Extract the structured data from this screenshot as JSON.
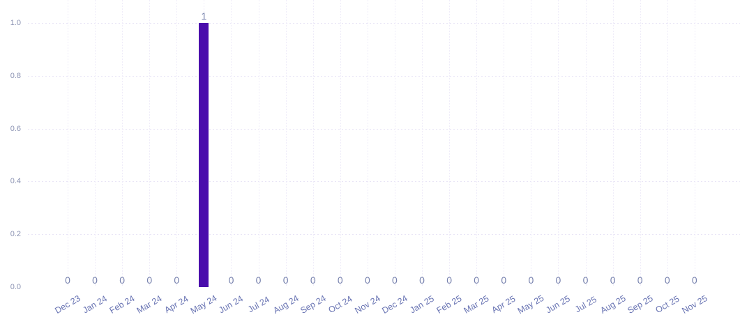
{
  "chart_data": {
    "type": "bar",
    "title": "",
    "xlabel": "",
    "ylabel": "",
    "categories": [
      "Dec 23",
      "Jan 24",
      "Feb 24",
      "Mar 24",
      "Apr 24",
      "May 24",
      "Jun 24",
      "Jul 24",
      "Aug 24",
      "Sep 24",
      "Oct 24",
      "Nov 24",
      "Dec 24",
      "Jan 25",
      "Feb 25",
      "Mar 25",
      "Apr 25",
      "May 25",
      "Jun 25",
      "Jul 25",
      "Aug 25",
      "Sep 25",
      "Oct 25",
      "Nov 25"
    ],
    "values": [
      0,
      0,
      0,
      0,
      0,
      1,
      0,
      0,
      0,
      0,
      0,
      0,
      0,
      0,
      0,
      0,
      0,
      0,
      0,
      0,
      0,
      0,
      0,
      0
    ],
    "value_labels": [
      "0",
      "0",
      "0",
      "0",
      "0",
      "1",
      "0",
      "0",
      "0",
      "0",
      "0",
      "0",
      "0",
      "0",
      "0",
      "0",
      "0",
      "0",
      "0",
      "0",
      "0",
      "0",
      "0",
      "0"
    ],
    "ylim": [
      0,
      1
    ],
    "yticks": [
      0.0,
      0.2,
      0.4,
      0.6,
      0.8,
      1.0
    ],
    "ytick_labels": [
      "0.0",
      "0.2",
      "0.4",
      "0.6",
      "0.8",
      "1.0"
    ],
    "grid": true,
    "legend": false,
    "colors": {
      "bar": "#4a0dac",
      "ytick_label": "#8a92b2",
      "xtick_label": "#6974b3",
      "value_label": "#7681ad",
      "hgrid": "#e9e5f6",
      "vgrid": "#efecf9",
      "background": "#ffffff"
    }
  }
}
